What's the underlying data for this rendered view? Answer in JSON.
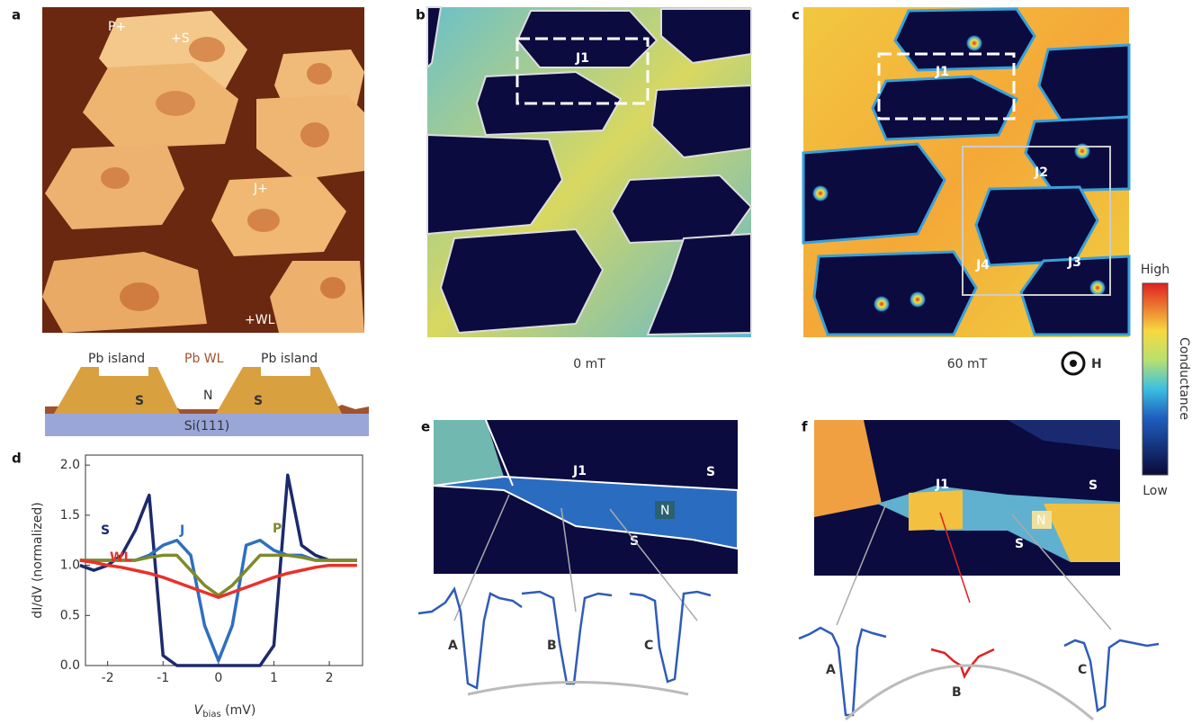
{
  "panels": {
    "a": {
      "label": "a",
      "tags": [
        "P+",
        "+S",
        "J+",
        "+WL"
      ],
      "schematic": {
        "left": "Pb island",
        "middle": "Pb WL",
        "right": "Pb island",
        "s_left": "S",
        "n": "N",
        "s_right": "S",
        "substrate": "Si(111)"
      }
    },
    "b": {
      "label": "b",
      "junction": "J1",
      "caption": "0 mT"
    },
    "c": {
      "label": "c",
      "junctions": [
        "J1",
        "J2",
        "J3",
        "J4"
      ],
      "caption": "60 mT",
      "field": "H"
    },
    "colorbar": {
      "high": "High",
      "low": "Low",
      "title": "Conductance"
    },
    "d": {
      "label": "d",
      "chart_data": {
        "type": "line",
        "x": [
          -2.5,
          -2.25,
          -2,
          -1.75,
          -1.5,
          -1.25,
          -1,
          -0.75,
          -0.5,
          -0.25,
          0,
          0.25,
          0.5,
          0.75,
          1,
          1.25,
          1.5,
          1.75,
          2,
          2.25,
          2.5
        ],
        "series": [
          {
            "name": "S",
            "color": "#1c2a6b",
            "values": [
              1.0,
              0.95,
              1.0,
              1.1,
              1.35,
              1.7,
              0.1,
              0,
              0,
              0,
              0,
              0,
              0,
              0,
              0.2,
              1.9,
              1.2,
              1.1,
              1.05,
              1.05,
              1.05
            ]
          },
          {
            "name": "J",
            "color": "#2e6fc0",
            "values": [
              1.05,
              1.05,
              1.05,
              1.05,
              1.05,
              1.1,
              1.2,
              1.25,
              1.1,
              0.4,
              0.05,
              0.4,
              1.2,
              1.25,
              1.15,
              1.1,
              1.1,
              1.05,
              1.05,
              1.05,
              1.05
            ]
          },
          {
            "name": "P",
            "color": "#7e8a2c",
            "values": [
              1.05,
              1.05,
              1.05,
              1.05,
              1.05,
              1.08,
              1.1,
              1.1,
              0.95,
              0.8,
              0.7,
              0.8,
              0.95,
              1.1,
              1.1,
              1.1,
              1.08,
              1.05,
              1.05,
              1.05,
              1.05
            ]
          },
          {
            "name": "WL",
            "color": "#e8322b",
            "values": [
              1.05,
              1.03,
              1.0,
              0.98,
              0.95,
              0.92,
              0.88,
              0.83,
              0.78,
              0.73,
              0.68,
              0.73,
              0.78,
              0.83,
              0.88,
              0.92,
              0.95,
              0.98,
              1.0,
              1.0,
              1.0
            ]
          }
        ],
        "xlim": [
          -2.4,
          2.6
        ],
        "xticks": [
          -2,
          -1,
          0,
          1,
          2
        ],
        "ylim": [
          0,
          2.1
        ],
        "yticks": [
          {
            "value": 0,
            "label": "0.0"
          },
          0.5,
          {
            "value": 1,
            "label": "1.0"
          },
          1.5,
          {
            "value": 2,
            "label": "2.0"
          }
        ],
        "xlabel": {
          "symbol": "V",
          "subscript": "bias",
          "unit": " (mV)"
        },
        "ylabel": "dI/dV (normalized)"
      }
    },
    "e": {
      "label": "e",
      "junction": "J1",
      "s_top": "S",
      "s_bottom": "S",
      "n": "N",
      "points": [
        "A",
        "B",
        "C"
      ]
    },
    "f": {
      "label": "f",
      "junction": "J1",
      "s_top": "S",
      "s_bottom": "S",
      "n": "N",
      "points": [
        "A",
        "B",
        "C"
      ]
    }
  }
}
